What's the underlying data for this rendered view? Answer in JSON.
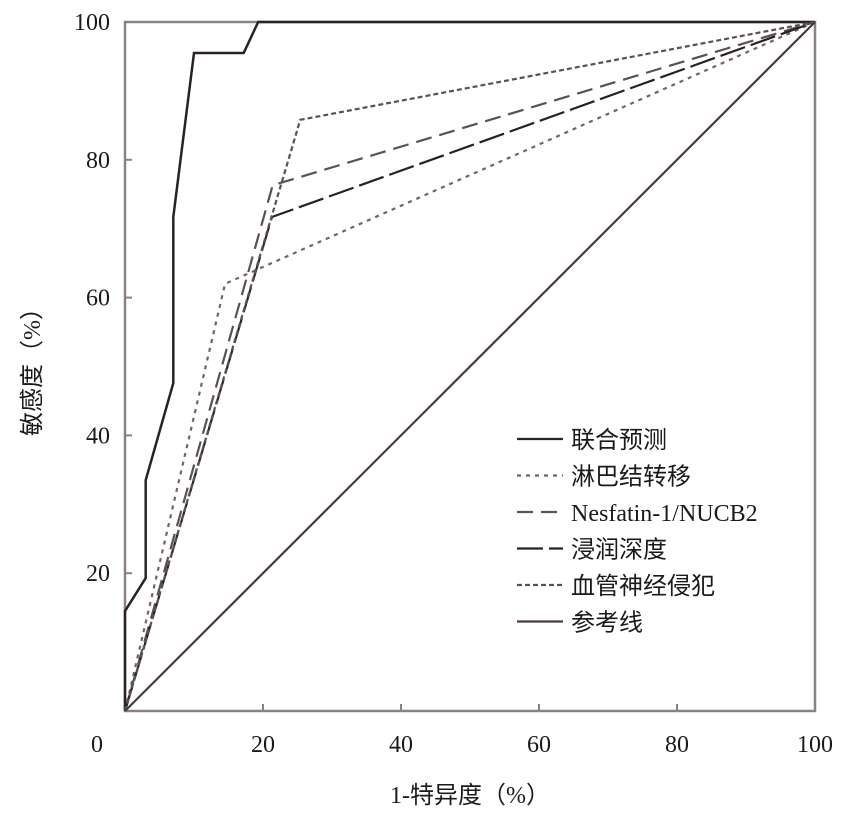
{
  "chart_data": {
    "type": "line",
    "title": "",
    "xlabel": "1-特异度（%）",
    "ylabel": "敏感度（%）",
    "xlim": [
      0,
      100
    ],
    "ylim": [
      0,
      100
    ],
    "xticks": [
      0,
      20,
      40,
      60,
      80,
      100
    ],
    "yticks": [
      20,
      40,
      60,
      80,
      100
    ],
    "grid": false,
    "legend_position": "bottom-right",
    "series": [
      {
        "name": "联合预测",
        "style": "solid",
        "points": [
          [
            0,
            0
          ],
          [
            0,
            14.5
          ],
          [
            3,
            19.3
          ],
          [
            3,
            33.5
          ],
          [
            7,
            47.6
          ],
          [
            7,
            71.7
          ],
          [
            10,
            95.5
          ],
          [
            17.2,
            95.5
          ],
          [
            19.3,
            100
          ],
          [
            100,
            100
          ]
        ]
      },
      {
        "name": "淋巴结转移",
        "style": "dotted",
        "points": [
          [
            0,
            0
          ],
          [
            14.5,
            62
          ],
          [
            100,
            100
          ]
        ]
      },
      {
        "name": "Nesfatin-1/NUCB2",
        "style": "dashed",
        "points": [
          [
            0,
            0
          ],
          [
            21.4,
            76.3
          ],
          [
            100,
            100
          ]
        ]
      },
      {
        "name": "浸润深度",
        "style": "longdash",
        "points": [
          [
            0,
            0
          ],
          [
            21.3,
            71.7
          ],
          [
            100,
            100
          ]
        ]
      },
      {
        "name": "血管神经侵犯",
        "style": "shortdash",
        "points": [
          [
            0,
            0
          ],
          [
            25.4,
            85.8
          ],
          [
            100,
            100
          ]
        ]
      },
      {
        "name": "参考线",
        "style": "solid",
        "points": [
          [
            0,
            0
          ],
          [
            100,
            100
          ]
        ]
      }
    ]
  }
}
